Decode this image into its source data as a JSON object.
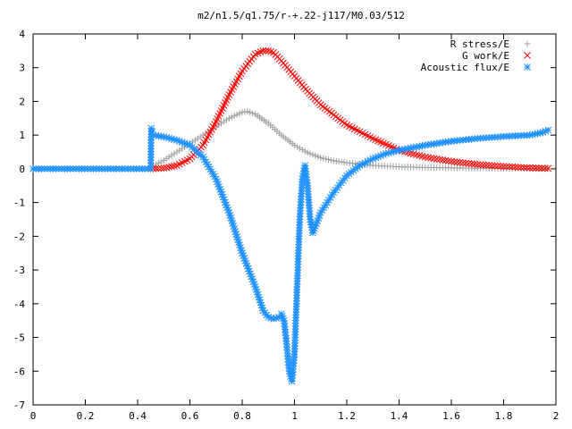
{
  "chart_data": {
    "type": "scatter",
    "title": "m2/n1.5/q1.75/r-+.22-j117/M0.03/512",
    "xlabel": "",
    "ylabel": "",
    "xlim": [
      0,
      2
    ],
    "ylim": [
      -7,
      4
    ],
    "xticks": [
      "0",
      "0.2",
      "0.4",
      "0.6",
      "0.8",
      "1",
      "1.2",
      "1.4",
      "1.6",
      "1.8",
      "2"
    ],
    "yticks": [
      "4",
      "3",
      "2",
      "1",
      "0",
      "-1",
      "-2",
      "-3",
      "-4",
      "-5",
      "-6",
      "-7"
    ],
    "legend_position": "top-right",
    "series": [
      {
        "name": "R stress/E",
        "marker": "plus",
        "color": "#a0a0a0",
        "x": [
          0.45,
          0.5,
          0.55,
          0.6,
          0.65,
          0.7,
          0.75,
          0.8,
          0.82,
          0.85,
          0.9,
          0.95,
          1.0,
          1.05,
          1.1,
          1.15,
          1.2,
          1.3,
          1.4,
          1.5,
          1.6,
          1.7,
          1.8,
          1.9,
          1.97
        ],
        "y": [
          0.05,
          0.25,
          0.5,
          0.75,
          1.0,
          1.25,
          1.5,
          1.68,
          1.7,
          1.62,
          1.35,
          1.0,
          0.7,
          0.48,
          0.33,
          0.24,
          0.18,
          0.1,
          0.06,
          0.04,
          0.03,
          0.02,
          0.01,
          0.01,
          0.01
        ]
      },
      {
        "name": "G work/E",
        "marker": "cross",
        "color": "#ff0000",
        "x": [
          0.45,
          0.5,
          0.55,
          0.6,
          0.65,
          0.7,
          0.75,
          0.8,
          0.85,
          0.88,
          0.9,
          0.92,
          0.95,
          1.0,
          1.05,
          1.1,
          1.2,
          1.3,
          1.4,
          1.5,
          1.6,
          1.7,
          1.8,
          1.9,
          1.97
        ],
        "y": [
          0.0,
          0.02,
          0.1,
          0.3,
          0.7,
          1.4,
          2.2,
          2.9,
          3.4,
          3.5,
          3.5,
          3.45,
          3.2,
          2.75,
          2.3,
          1.9,
          1.3,
          0.9,
          0.55,
          0.35,
          0.22,
          0.13,
          0.07,
          0.03,
          0.01
        ]
      },
      {
        "name": "Acoustic flux/E",
        "marker": "star",
        "color": "#1e90ff",
        "x": [
          0.0,
          0.45,
          0.452,
          0.46,
          0.5,
          0.55,
          0.6,
          0.65,
          0.7,
          0.75,
          0.8,
          0.85,
          0.88,
          0.9,
          0.92,
          0.94,
          0.95,
          0.96,
          0.97,
          0.98,
          0.99,
          1.0,
          1.01,
          1.02,
          1.03,
          1.04,
          1.05,
          1.06,
          1.07,
          1.08,
          1.1,
          1.15,
          1.2,
          1.25,
          1.3,
          1.35,
          1.4,
          1.5,
          1.6,
          1.7,
          1.8,
          1.9,
          1.95,
          1.97
        ],
        "y": [
          0.0,
          0.0,
          1.2,
          1.0,
          0.95,
          0.85,
          0.7,
          0.35,
          -0.3,
          -1.3,
          -2.5,
          -3.5,
          -4.2,
          -4.4,
          -4.45,
          -4.4,
          -4.3,
          -4.5,
          -5.2,
          -6.0,
          -6.3,
          -5.5,
          -3.5,
          -1.5,
          -0.3,
          0.1,
          -0.5,
          -1.5,
          -1.9,
          -1.7,
          -1.3,
          -0.7,
          -0.2,
          0.1,
          0.3,
          0.45,
          0.55,
          0.7,
          0.82,
          0.9,
          0.96,
          1.0,
          1.08,
          1.15
        ]
      }
    ]
  }
}
